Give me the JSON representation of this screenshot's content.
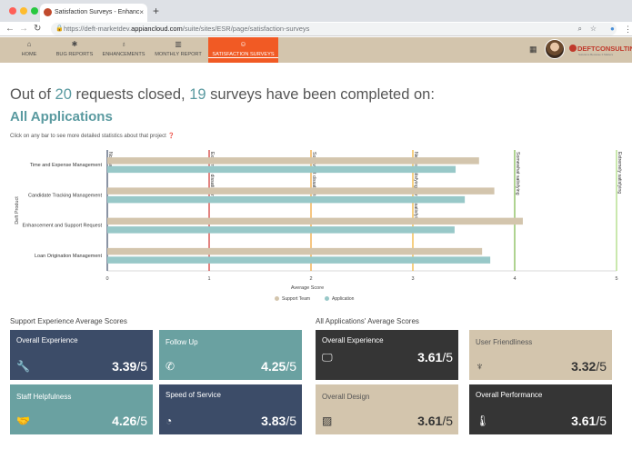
{
  "browser": {
    "tab_title": "Satisfaction Surveys - Enhanc",
    "tab_close": "×",
    "new_tab": "+",
    "url_secure": "https://deft-marketdev.",
    "url_domain": "appiancloud.com",
    "url_path": "/suite/sites/ESR/page/satisfaction-surveys"
  },
  "nav": {
    "items": [
      {
        "label": "HOME",
        "icon": "home-icon"
      },
      {
        "label": "BUG REPORTS",
        "icon": "bug-icon"
      },
      {
        "label": "ENHANCEMENTS",
        "icon": "lightbulb-icon"
      },
      {
        "label": "MONTHLY REPORT",
        "icon": "bar-chart-icon"
      },
      {
        "label": "SATISFACTION SURVEYS",
        "icon": "smiley-icon"
      }
    ],
    "active": "SATISFACTION SURVEYS"
  },
  "logo": {
    "brand_a": "DEFT",
    "brand_b": "CONSULTING",
    "tagline": "Solutions Because It Matters"
  },
  "headline": {
    "prefix": "Out of ",
    "total": "20",
    "middle": " requests closed, ",
    "completed": "19",
    "suffix": " surveys have been completed on:"
  },
  "subheading": "All Applications",
  "hint": "Click on any bar to see more detailed statistics about that project",
  "colors": {
    "support_team": "#d3c5ad",
    "application": "#98c8c8",
    "accent": "#f15a24"
  },
  "chart_data": {
    "type": "bar",
    "orientation": "horizontal",
    "categories": [
      "Time and Expense Management",
      "Candidate Tracking Management",
      "Enhancement and Support Request",
      "Loan Origination Management"
    ],
    "series": [
      {
        "name": "Support Team",
        "values": [
          3.65,
          3.8,
          4.08,
          3.68
        ]
      },
      {
        "name": "Application",
        "values": [
          3.42,
          3.51,
          3.41,
          3.76
        ]
      }
    ],
    "xlabel": "Average Score",
    "ylabel": "Deft Product",
    "xlim": [
      0,
      5
    ],
    "xticks": [
      "0",
      "1",
      "2",
      "3",
      "4",
      "5"
    ],
    "reference_lines": [
      {
        "value": 0,
        "label": "Not Rated",
        "color": "#3c4c68"
      },
      {
        "value": 1,
        "label": "Extremely dissatisfying",
        "color": "#d0312d"
      },
      {
        "value": 2,
        "label": "Somewhat dissatisfying",
        "color": "#f0a030"
      },
      {
        "value": 3,
        "label": "Neither satisfying nor dissatisfying",
        "color": "#f0b030"
      },
      {
        "value": 4,
        "label": "Somewhat satisfying",
        "color": "#7ab648"
      },
      {
        "value": 5,
        "label": "Extremely satisfying",
        "color": "#a8d878"
      }
    ],
    "legend_position": "bottom"
  },
  "support_section": {
    "title": "Support Experience Average Scores",
    "cards": [
      {
        "label": "Overall Experience",
        "score": "3.39",
        "den": "/5",
        "icon": "wrench-icon"
      },
      {
        "label": "Follow Up",
        "score": "4.25",
        "den": "/5",
        "icon": "phone-icon"
      },
      {
        "label": "Staff Helpfulness",
        "score": "4.26",
        "den": "/5",
        "icon": "handshake-icon"
      },
      {
        "label": "Speed of Service",
        "score": "3.83",
        "den": "/5",
        "icon": "speedometer-icon"
      }
    ]
  },
  "app_section": {
    "title": "All Applications' Average Scores",
    "cards": [
      {
        "label": "Overall Experience",
        "score": "3.61",
        "den": "/5",
        "icon": "monitor-icon"
      },
      {
        "label": "User Friendliness",
        "score": "3.32",
        "den": "/5",
        "icon": "person-icon"
      },
      {
        "label": "Overall Design",
        "score": "3.61",
        "den": "/5",
        "icon": "image-icon"
      },
      {
        "label": "Overall Performance",
        "score": "3.61",
        "den": "/5",
        "icon": "thermometer-icon"
      }
    ]
  }
}
